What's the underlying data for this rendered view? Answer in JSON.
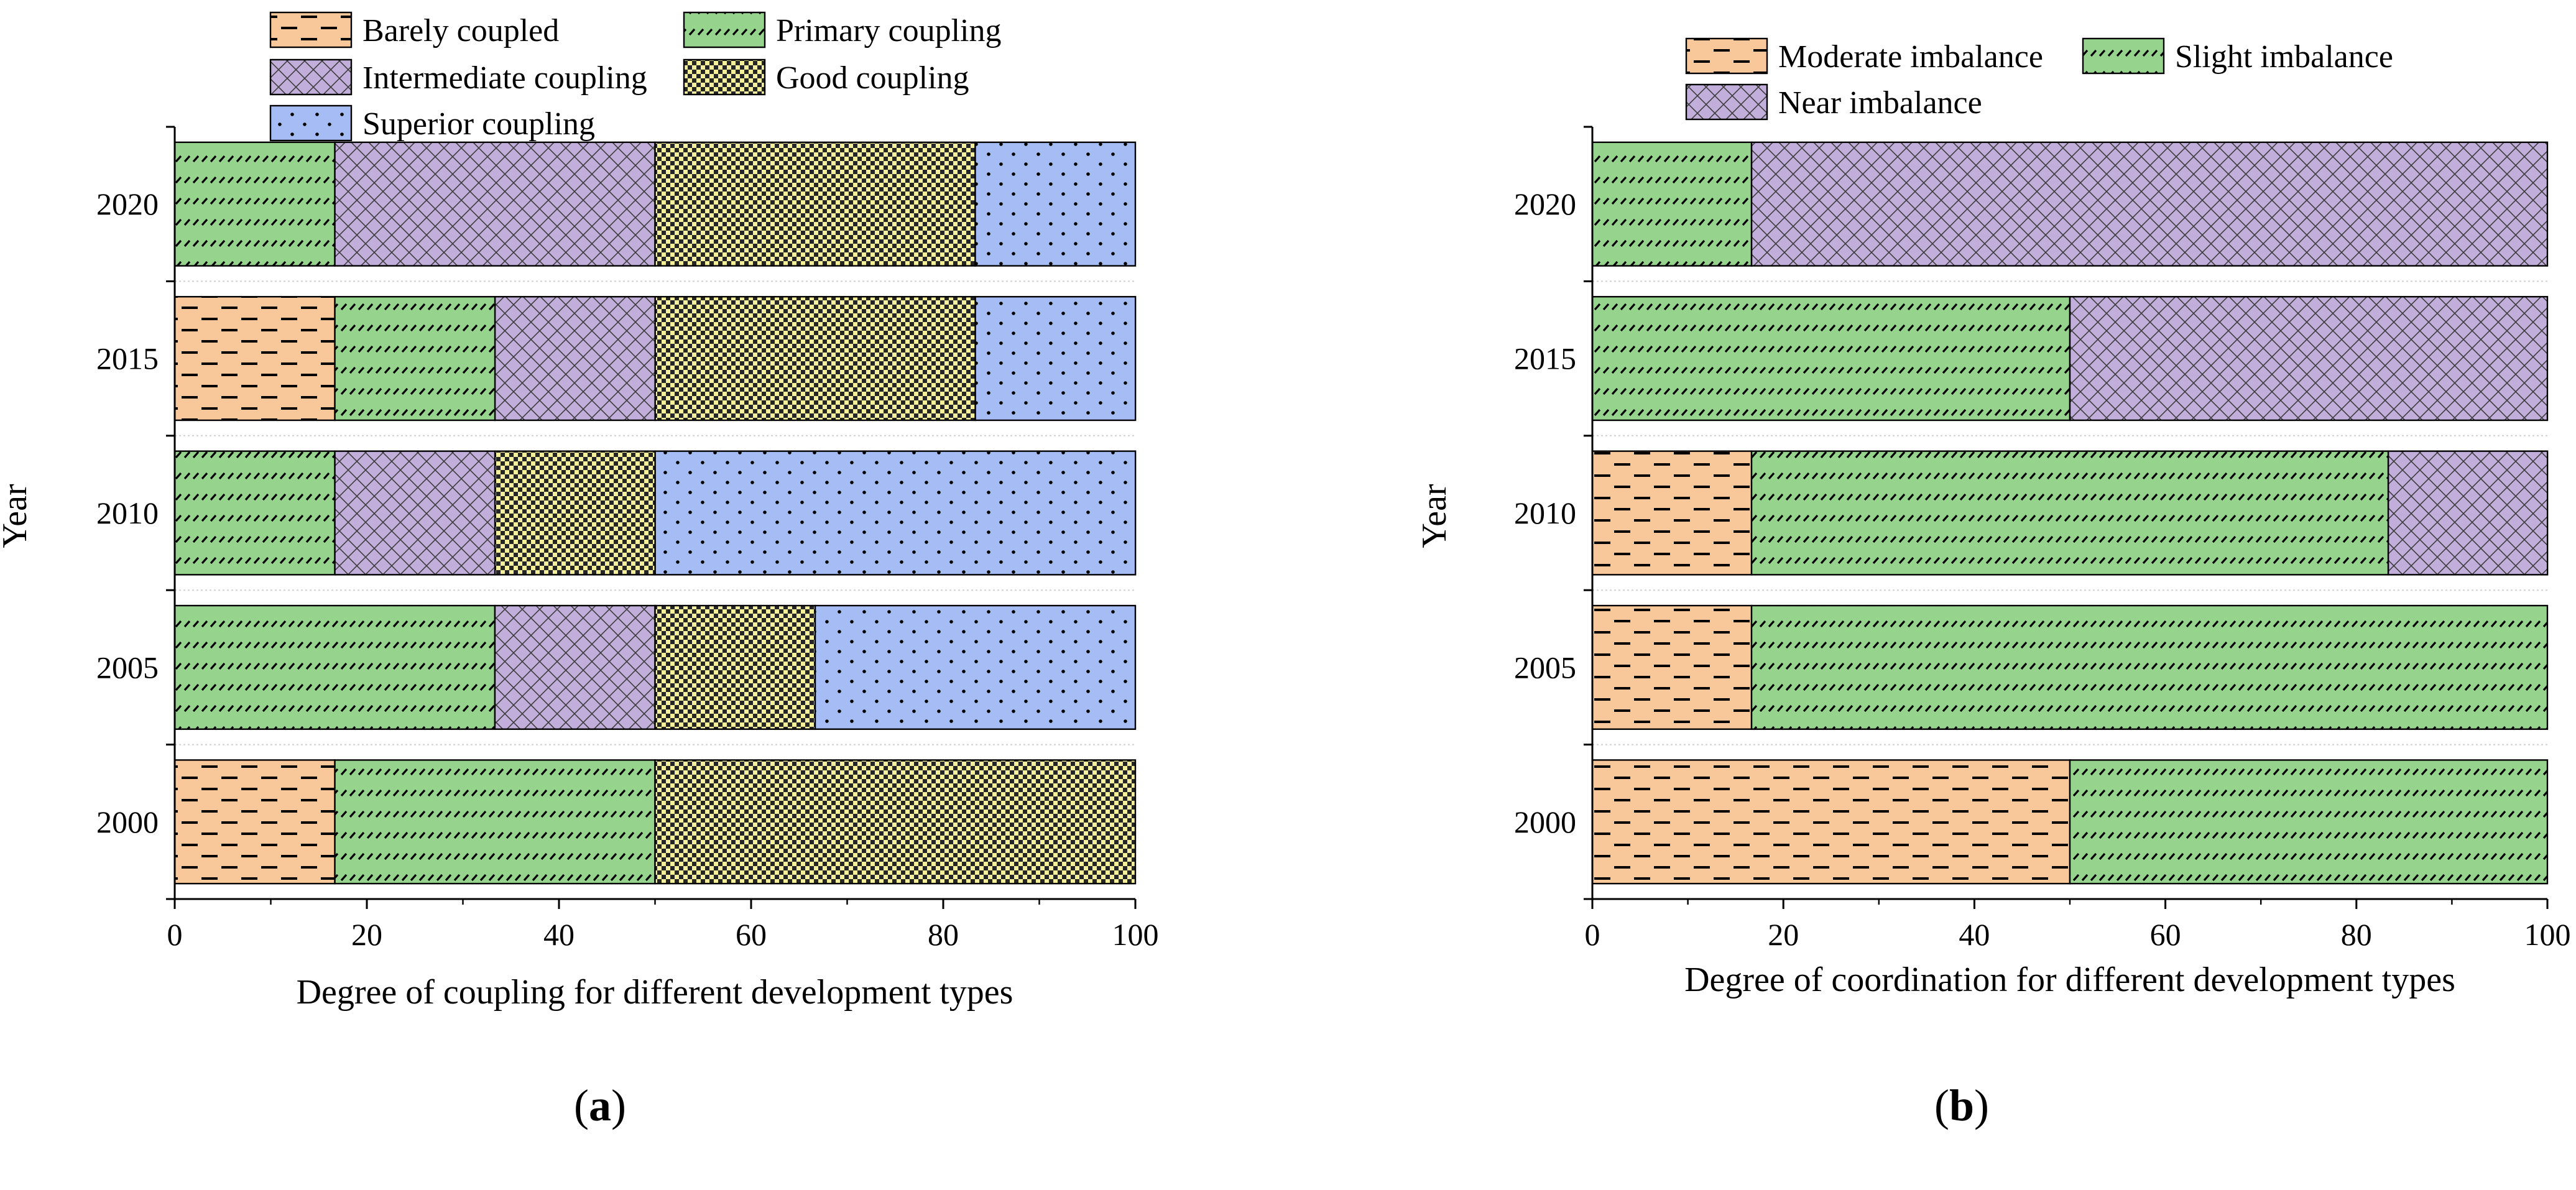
{
  "colors": {
    "orange": "#f9c89a",
    "green": "#96d48e",
    "purple": "#c1aedb",
    "yellow": "#f4ef9a",
    "blue": "#a5bdf4"
  },
  "chart_data": [
    {
      "type": "bar",
      "orientation": "horizontal",
      "stacked": true,
      "panel_label": "a",
      "title": "",
      "categories": [
        "2000",
        "2005",
        "2010",
        "2015",
        "2020"
      ],
      "xlabel": "Degree of coupling for different development types",
      "ylabel": "Year",
      "xlim": [
        0,
        100
      ],
      "xticks": [
        "0",
        "20",
        "40",
        "60",
        "80",
        "100"
      ],
      "legend_position": "top",
      "series": [
        {
          "name": "Barely coupled",
          "color": "orange",
          "pattern": "dash",
          "values": [
            16.67,
            0,
            0,
            16.67,
            0
          ]
        },
        {
          "name": "Primary coupling",
          "color": "green",
          "pattern": "slash",
          "values": [
            33.33,
            33.33,
            16.67,
            16.67,
            16.67
          ]
        },
        {
          "name": "Intermediate coupling",
          "color": "purple",
          "pattern": "crosshatch",
          "values": [
            0,
            16.67,
            16.67,
            16.67,
            33.33
          ]
        },
        {
          "name": "Good coupling",
          "color": "yellow",
          "pattern": "checker",
          "values": [
            50,
            16.67,
            16.67,
            33.33,
            33.33
          ]
        },
        {
          "name": "Superior coupling",
          "color": "blue",
          "pattern": "dots",
          "values": [
            0,
            33.33,
            50,
            16.67,
            16.67
          ]
        }
      ]
    },
    {
      "type": "bar",
      "orientation": "horizontal",
      "stacked": true,
      "panel_label": "b",
      "title": "",
      "categories": [
        "2000",
        "2005",
        "2010",
        "2015",
        "2020"
      ],
      "xlabel": "Degree of coordination for different development types",
      "ylabel": "Year",
      "xlim": [
        0,
        100
      ],
      "xticks": [
        "0",
        "20",
        "40",
        "60",
        "80",
        "100"
      ],
      "legend_position": "top",
      "series": [
        {
          "name": "Moderate imbalance",
          "color": "orange",
          "pattern": "dash",
          "values": [
            50,
            16.67,
            16.67,
            0,
            0
          ]
        },
        {
          "name": "Slight imbalance",
          "color": "green",
          "pattern": "slash",
          "values": [
            50,
            83.33,
            66.67,
            50,
            16.67
          ]
        },
        {
          "name": "Near imbalance",
          "color": "purple",
          "pattern": "crosshatch",
          "values": [
            0,
            0,
            16.67,
            50,
            83.33
          ]
        }
      ]
    }
  ]
}
